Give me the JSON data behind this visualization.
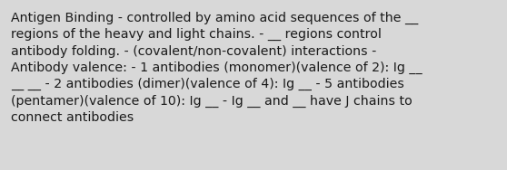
{
  "background_color": "#d8d8d8",
  "text_color": "#1a1a1a",
  "font_size": 10.2,
  "text": "Antigen Binding - controlled by amino acid sequences of the __\nregions of the heavy and light chains. - __ regions control\nantibody folding. - (covalent/non-covalent) interactions -\nAntibody valence: - 1 antibodies (monomer)(valence of 2): Ig __\n__ __ - 2 antibodies (dimer)(valence of 4): Ig __ - 5 antibodies\n(pentamer)(valence of 10): Ig __ - Ig __ and __ have J chains to\nconnect antibodies",
  "fig_width": 5.58,
  "fig_height": 1.88,
  "dpi": 100
}
